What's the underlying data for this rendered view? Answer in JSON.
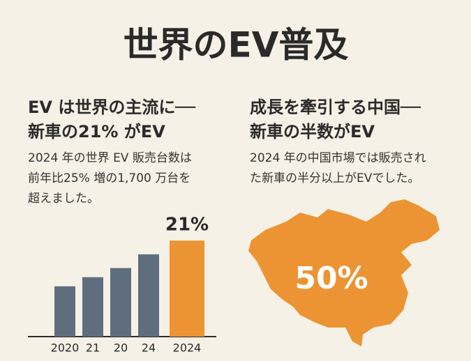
{
  "title": "世界のEV普及",
  "panels": [
    {
      "heading": [
        "EV は世界の主流に──",
        "新車の21% がEV"
      ],
      "body": [
        "2024 年の世界 EV 販売台数は",
        "前年比25% 増の1,700 万台を",
        "超えました。"
      ]
    },
    {
      "heading": [
        "成長を牽引する中国──",
        "新車の半数がEV"
      ],
      "body": [
        "2024 年の中国市場では販売され",
        "た新車の半分以上がEVでした。"
      ],
      "map_label": "50%"
    }
  ],
  "chart_data": {
    "type": "bar",
    "categories": [
      "2020",
      "21",
      "20",
      "24",
      "2024"
    ],
    "values": [
      11,
      13,
      15,
      18,
      21
    ],
    "value_labels": [
      null,
      null,
      null,
      null,
      "21%"
    ],
    "colors": [
      "#5e6e7e",
      "#5e6e7e",
      "#5e6e7e",
      "#5e6e7e",
      "#ec9433"
    ],
    "ylim": [
      0,
      25
    ]
  }
}
